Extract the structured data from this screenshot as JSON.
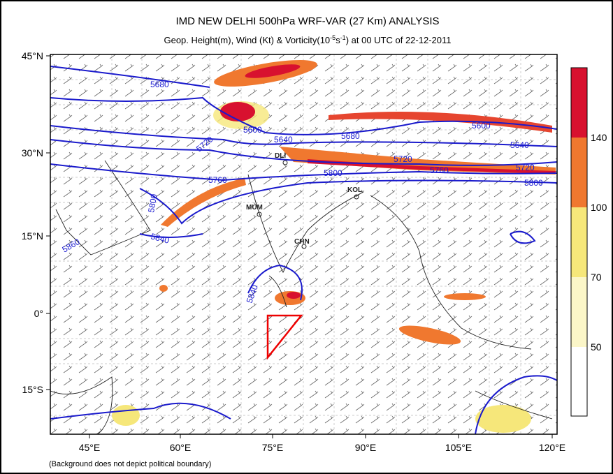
{
  "header": {
    "title": "IMD NEW DELHI 500hPa WRF-VAR (27 Km) ANALYSIS",
    "subtitle": [
      "Geop. Height(m), Wind (Kt) & Vorticity(10",
      "-5",
      "s",
      "-1",
      ") at 00 UTC of 22-12-2011"
    ]
  },
  "map": {
    "lat_labels": [
      "45°N",
      "30°N",
      "15°N",
      "0°",
      "15°S"
    ],
    "lon_labels": [
      "45°E",
      "60°E",
      "75°E",
      "90°E",
      "105°E",
      "120°E"
    ],
    "contour_labels": [
      "5680",
      "5600",
      "5640",
      "5680",
      "5720",
      "5760",
      "5800",
      "5840",
      "5860",
      "5800",
      "5720",
      "5760",
      "5600",
      "5640",
      "5720",
      "5800",
      "5840"
    ],
    "station_labels": [
      "DLI",
      "MUM",
      "KOL",
      "CHN"
    ]
  },
  "colorbar": {
    "labels": [
      140,
      100,
      70,
      50
    ]
  },
  "footnote": "(Background does not depict political boundary)"
}
